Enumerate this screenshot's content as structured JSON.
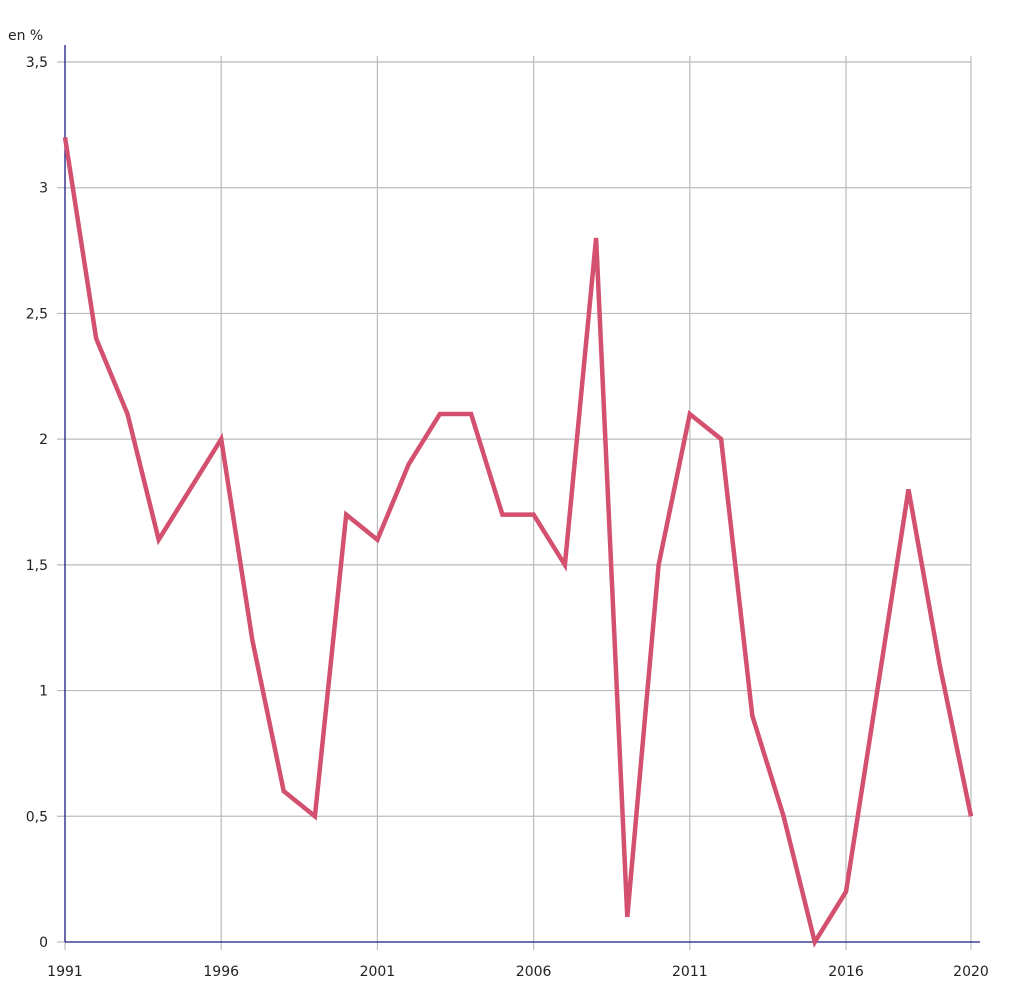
{
  "chart_data": {
    "type": "line",
    "title": "",
    "xlabel": "",
    "ylabel": "en %",
    "ylim": [
      0,
      3.5
    ],
    "xlim": [
      1991,
      2020
    ],
    "grid": true,
    "legend": null,
    "y_ticks": [
      "0",
      "0,5",
      "1",
      "1,5",
      "2",
      "2,5",
      "3",
      "3,5"
    ],
    "x_ticks": [
      "1991",
      "1996",
      "2001",
      "2006",
      "2011",
      "2016",
      "2020"
    ],
    "x": [
      1991,
      1992,
      1993,
      1994,
      1995,
      1996,
      1997,
      1998,
      1999,
      2000,
      2001,
      2002,
      2003,
      2004,
      2005,
      2006,
      2007,
      2008,
      2009,
      2010,
      2011,
      2012,
      2013,
      2014,
      2015,
      2016,
      2017,
      2018,
      2019,
      2020
    ],
    "series": [
      {
        "name": "",
        "color": "#d4506f",
        "values": [
          3.2,
          2.4,
          2.1,
          1.6,
          1.8,
          2.0,
          1.2,
          0.6,
          0.5,
          1.7,
          1.6,
          1.9,
          2.1,
          2.1,
          1.7,
          1.7,
          1.5,
          2.8,
          0.1,
          1.5,
          2.1,
          2.0,
          0.9,
          0.5,
          0.0,
          0.2,
          1.0,
          1.8,
          1.1,
          0.5
        ]
      }
    ]
  },
  "colors": {
    "line": "#d4506f",
    "axis": "#1a1a80",
    "grid": "#bbbbbb",
    "text": "#222222"
  }
}
